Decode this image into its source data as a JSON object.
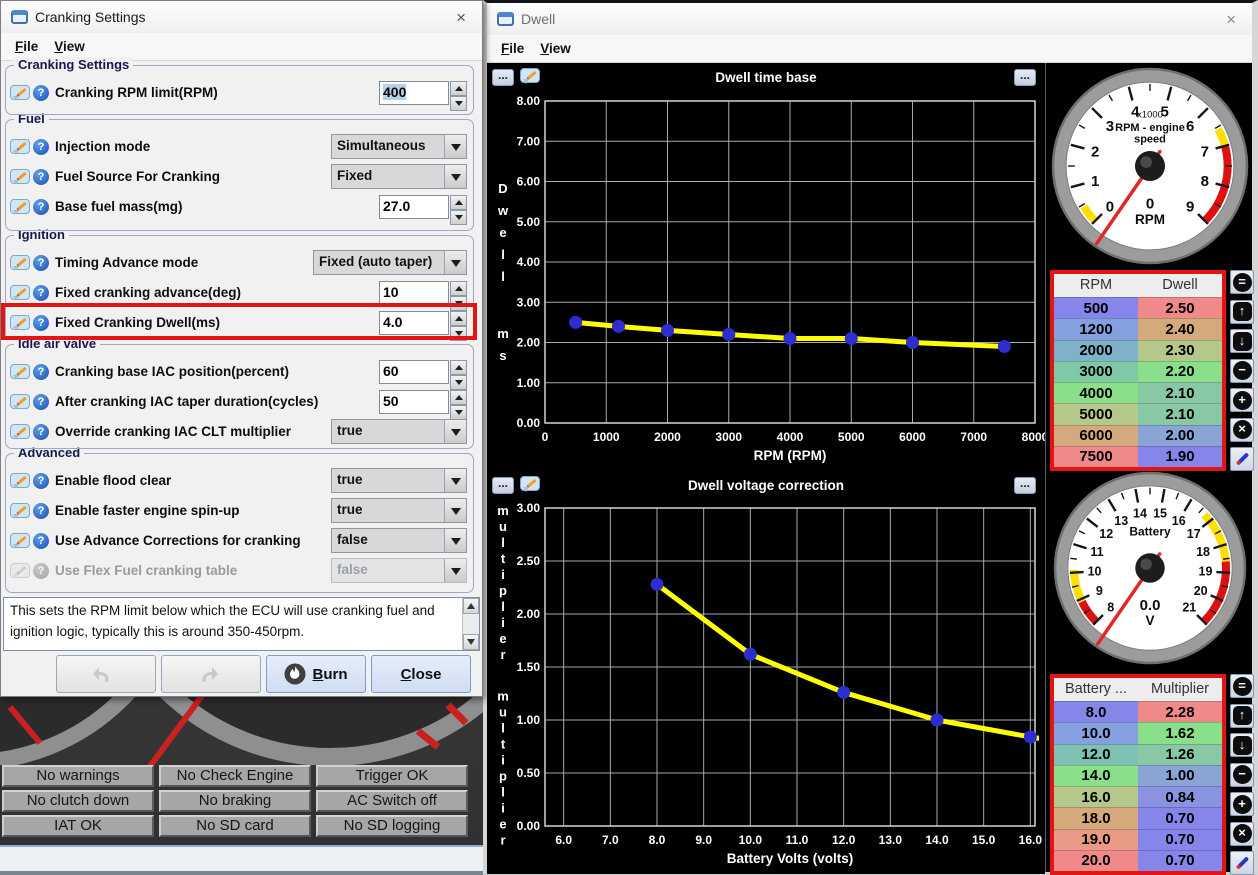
{
  "ui": {
    "close_glyph": "×",
    "ellipsis": "..."
  },
  "cranking": {
    "title": "Cranking Settings",
    "menus": [
      "File",
      "View"
    ],
    "groups": [
      {
        "title": "Cranking Settings",
        "rows": [
          {
            "label": "Cranking RPM limit(RPM)",
            "control": "spinner",
            "value": "400",
            "selected": true
          }
        ]
      },
      {
        "title": "Fuel",
        "rows": [
          {
            "label": "Injection mode",
            "control": "dropdown",
            "value": "Simultaneous"
          },
          {
            "label": "Fuel Source For Cranking",
            "control": "dropdown",
            "value": "Fixed"
          },
          {
            "label": "Base fuel mass(mg)",
            "control": "spinner",
            "value": "27.0"
          }
        ]
      },
      {
        "title": "Ignition",
        "rows": [
          {
            "label": "Timing Advance mode",
            "control": "dropdown",
            "value": "Fixed (auto taper)",
            "wide": true
          },
          {
            "label": "Fixed cranking advance(deg)",
            "control": "spinner",
            "value": "10"
          },
          {
            "label": "Fixed Cranking Dwell(ms)",
            "control": "spinner",
            "value": "4.0",
            "highlighted": true
          }
        ]
      },
      {
        "title": "Idle air valve",
        "rows": [
          {
            "label": "Cranking base IAC position(percent)",
            "control": "spinner",
            "value": "60"
          },
          {
            "label": "After cranking IAC taper duration(cycles)",
            "control": "spinner",
            "value": "50"
          },
          {
            "label": "Override cranking IAC CLT multiplier",
            "control": "dropdown",
            "value": "true"
          }
        ]
      },
      {
        "title": "Advanced",
        "rows": [
          {
            "label": "Enable flood clear",
            "control": "dropdown",
            "value": "true"
          },
          {
            "label": "Enable faster engine spin-up",
            "control": "dropdown",
            "value": "true"
          },
          {
            "label": "Use Advance Corrections for cranking",
            "control": "dropdown",
            "value": "false"
          },
          {
            "label": "Use Flex Fuel cranking table",
            "control": "dropdown",
            "value": "false",
            "disabled": true
          }
        ]
      }
    ],
    "description": "This sets the RPM limit below which the ECU will use cranking fuel and ignition logic, typically this is around 350-450rpm.",
    "buttons": {
      "burn": "Burn",
      "close": "Close"
    }
  },
  "status_buttons": [
    [
      "No warnings",
      "No Check Engine",
      "Trigger OK"
    ],
    [
      "No clutch down",
      "No braking",
      "AC Switch off"
    ],
    [
      "IAT OK",
      "No SD card",
      "No SD logging"
    ]
  ],
  "dwell": {
    "title": "Dwell",
    "menus": [
      "File",
      "View"
    ]
  },
  "chart_data": [
    {
      "type": "line",
      "title": "Dwell time base",
      "xlabel": "RPM (RPM)",
      "ylabel": "Dwell",
      "ylabel_units": "ms",
      "x": [
        500,
        1200,
        2000,
        3000,
        4000,
        5000,
        6000,
        7500
      ],
      "y": [
        2.5,
        2.4,
        2.3,
        2.2,
        2.1,
        2.1,
        2.0,
        1.9
      ],
      "xlim": [
        0,
        8000
      ],
      "ylim": [
        0,
        8
      ],
      "xticks": [
        0,
        1000,
        2000,
        3000,
        4000,
        5000,
        6000,
        7000,
        8000
      ],
      "xtick_labels": [
        "0",
        "1000",
        "2000",
        "3000",
        "4000",
        "5000",
        "6000",
        "7000",
        "8000"
      ],
      "yticks": [
        0,
        1,
        2,
        3,
        4,
        5,
        6,
        7,
        8
      ],
      "ytick_labels": [
        "0.00",
        "1.00",
        "2.00",
        "3.00",
        "4.00",
        "5.00",
        "6.00",
        "7.00",
        "8.00"
      ],
      "line_color": "#ffff00",
      "point_color": "#2d2dd0",
      "grid": true,
      "background": "#000000",
      "legend": "none"
    },
    {
      "type": "line",
      "title": "Dwell voltage correction",
      "xlabel": "Battery Volts (volts)",
      "ylabel": "multiplier",
      "ylabel_units": "multiplier",
      "x": [
        8,
        10,
        12,
        14,
        16,
        18,
        19,
        20
      ],
      "y": [
        2.28,
        1.62,
        1.26,
        1.0,
        0.84,
        0.7,
        0.7,
        0.7
      ],
      "xlim": [
        5.6,
        16.1
      ],
      "ylim": [
        0,
        3
      ],
      "xticks": [
        6,
        7,
        8,
        9,
        10,
        11,
        12,
        13,
        14,
        15,
        16
      ],
      "xtick_labels": [
        "6.0",
        "7.0",
        "8.0",
        "9.0",
        "10.0",
        "11.0",
        "12.0",
        "13.0",
        "14.0",
        "15.0",
        "16.0"
      ],
      "yticks": [
        0,
        0.5,
        1,
        1.5,
        2,
        2.5,
        3
      ],
      "ytick_labels": [
        "0.00",
        "0.50",
        "1.00",
        "1.50",
        "2.00",
        "2.50",
        "3.00"
      ],
      "line_color": "#ffff00",
      "point_color": "#2d2dd0",
      "grid": true,
      "background": "#000000",
      "legend": "none"
    }
  ],
  "tables": [
    {
      "headers": [
        "RPM",
        "Dwell"
      ],
      "rows": [
        [
          "500",
          "2.50"
        ],
        [
          "1200",
          "2.40"
        ],
        [
          "2000",
          "2.30"
        ],
        [
          "3000",
          "2.20"
        ],
        [
          "4000",
          "2.10"
        ],
        [
          "5000",
          "2.10"
        ],
        [
          "6000",
          "2.00"
        ],
        [
          "7500",
          "1.90"
        ]
      ],
      "cell_colors": [
        [
          "#8585ea",
          "#f08a8a"
        ],
        [
          "#84a0e0",
          "#d4aa7c"
        ],
        [
          "#7fb2c9",
          "#b4c88c"
        ],
        [
          "#7fc8a8",
          "#8ae08a"
        ],
        [
          "#8ae08a",
          "#88c8a4"
        ],
        [
          "#b4c88c",
          "#88c8a4"
        ],
        [
          "#d4aa7c",
          "#8aa4d4"
        ],
        [
          "#f08a8a",
          "#8585ea"
        ]
      ]
    },
    {
      "headers": [
        "Battery ...",
        "Multiplier"
      ],
      "rows": [
        [
          "8.0",
          "2.28"
        ],
        [
          "10.0",
          "1.62"
        ],
        [
          "12.0",
          "1.26"
        ],
        [
          "14.0",
          "1.00"
        ],
        [
          "16.0",
          "0.84"
        ],
        [
          "18.0",
          "0.70"
        ],
        [
          "19.0",
          "0.70"
        ],
        [
          "20.0",
          "0.70"
        ]
      ],
      "cell_colors": [
        [
          "#8585ea",
          "#f08a8a"
        ],
        [
          "#84a0e0",
          "#8ae08a"
        ],
        [
          "#7fc0b4",
          "#88c8a4"
        ],
        [
          "#8ae08a",
          "#8aa4d4"
        ],
        [
          "#b4c88c",
          "#8a93e2"
        ],
        [
          "#d4aa7c",
          "#8585ea"
        ],
        [
          "#e89a84",
          "#8585ea"
        ],
        [
          "#f08a8a",
          "#8585ea"
        ]
      ]
    }
  ],
  "table_buttons": [
    {
      "name": "equalize",
      "glyph": "=",
      "shape": "circle"
    },
    {
      "name": "shift-up",
      "glyph": "↑",
      "shape": "square"
    },
    {
      "name": "shift-down",
      "glyph": "↓",
      "shape": "square"
    },
    {
      "name": "decrement",
      "glyph": "−",
      "shape": "circle"
    },
    {
      "name": "increment",
      "glyph": "+",
      "shape": "circle"
    },
    {
      "name": "clear",
      "glyph": "×",
      "shape": "circle"
    },
    {
      "name": "edit",
      "glyph": "",
      "shape": "pencil"
    }
  ],
  "gauges": [
    {
      "name": "rpm",
      "title_small": "x1000",
      "title": "RPM - engine speed",
      "value": "0",
      "units": "RPM",
      "min": 0,
      "max": 9,
      "major_step": 1,
      "needle_value": -0.35,
      "zones": [
        {
          "from": 0,
          "to": 0.45,
          "color": "#ffdf00"
        },
        {
          "from": 6.55,
          "to": 7,
          "color": "#ffdf00"
        },
        {
          "from": 7,
          "to": 9,
          "color": "#dd1111"
        }
      ]
    },
    {
      "name": "battery",
      "title": "Battery",
      "value": "0.0",
      "units": "V",
      "min": 8,
      "max": 21,
      "major_step": 1,
      "needle_value": 7.5,
      "zones": [
        {
          "from": 8,
          "to": 8.9,
          "color": "#dd1111"
        },
        {
          "from": 8.9,
          "to": 10.1,
          "color": "#ffdf00"
        },
        {
          "from": 16.7,
          "to": 18.6,
          "color": "#ffdf00"
        },
        {
          "from": 18.6,
          "to": 21,
          "color": "#dd1111"
        }
      ]
    }
  ]
}
